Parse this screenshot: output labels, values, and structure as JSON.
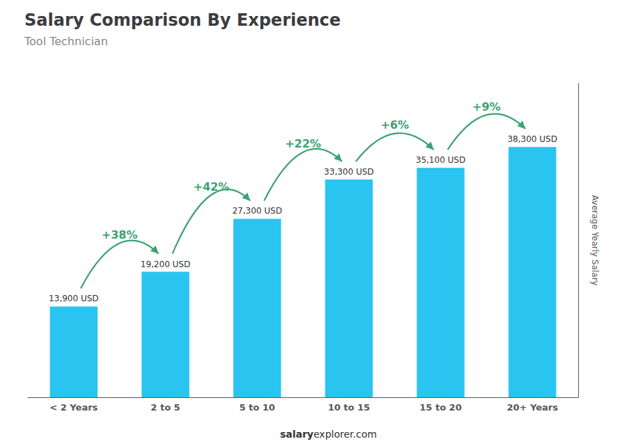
{
  "chart_data": {
    "type": "bar",
    "title": "Salary Comparison By Experience",
    "subtitle": "Tool Technician",
    "categories": [
      "< 2 Years",
      "2 to 5",
      "5 to 10",
      "10 to 15",
      "15 to 20",
      "20+ Years"
    ],
    "values": [
      13900,
      19200,
      27300,
      33300,
      35100,
      38300
    ],
    "value_labels": [
      "13,900 USD",
      "19,200 USD",
      "27,300 USD",
      "33,300 USD",
      "35,100 USD",
      "38,300 USD"
    ],
    "data_labels": true,
    "color": "#29C5F0",
    "ylabel": "Average Yearly Salary",
    "ylim": [
      0,
      48000
    ],
    "tick_labels": "x",
    "grid": false,
    "annotations": [
      "+38%",
      "+42%",
      "+22%",
      "+6%",
      "+9%"
    ],
    "footer": [
      "salary",
      "explorer.com"
    ]
  }
}
